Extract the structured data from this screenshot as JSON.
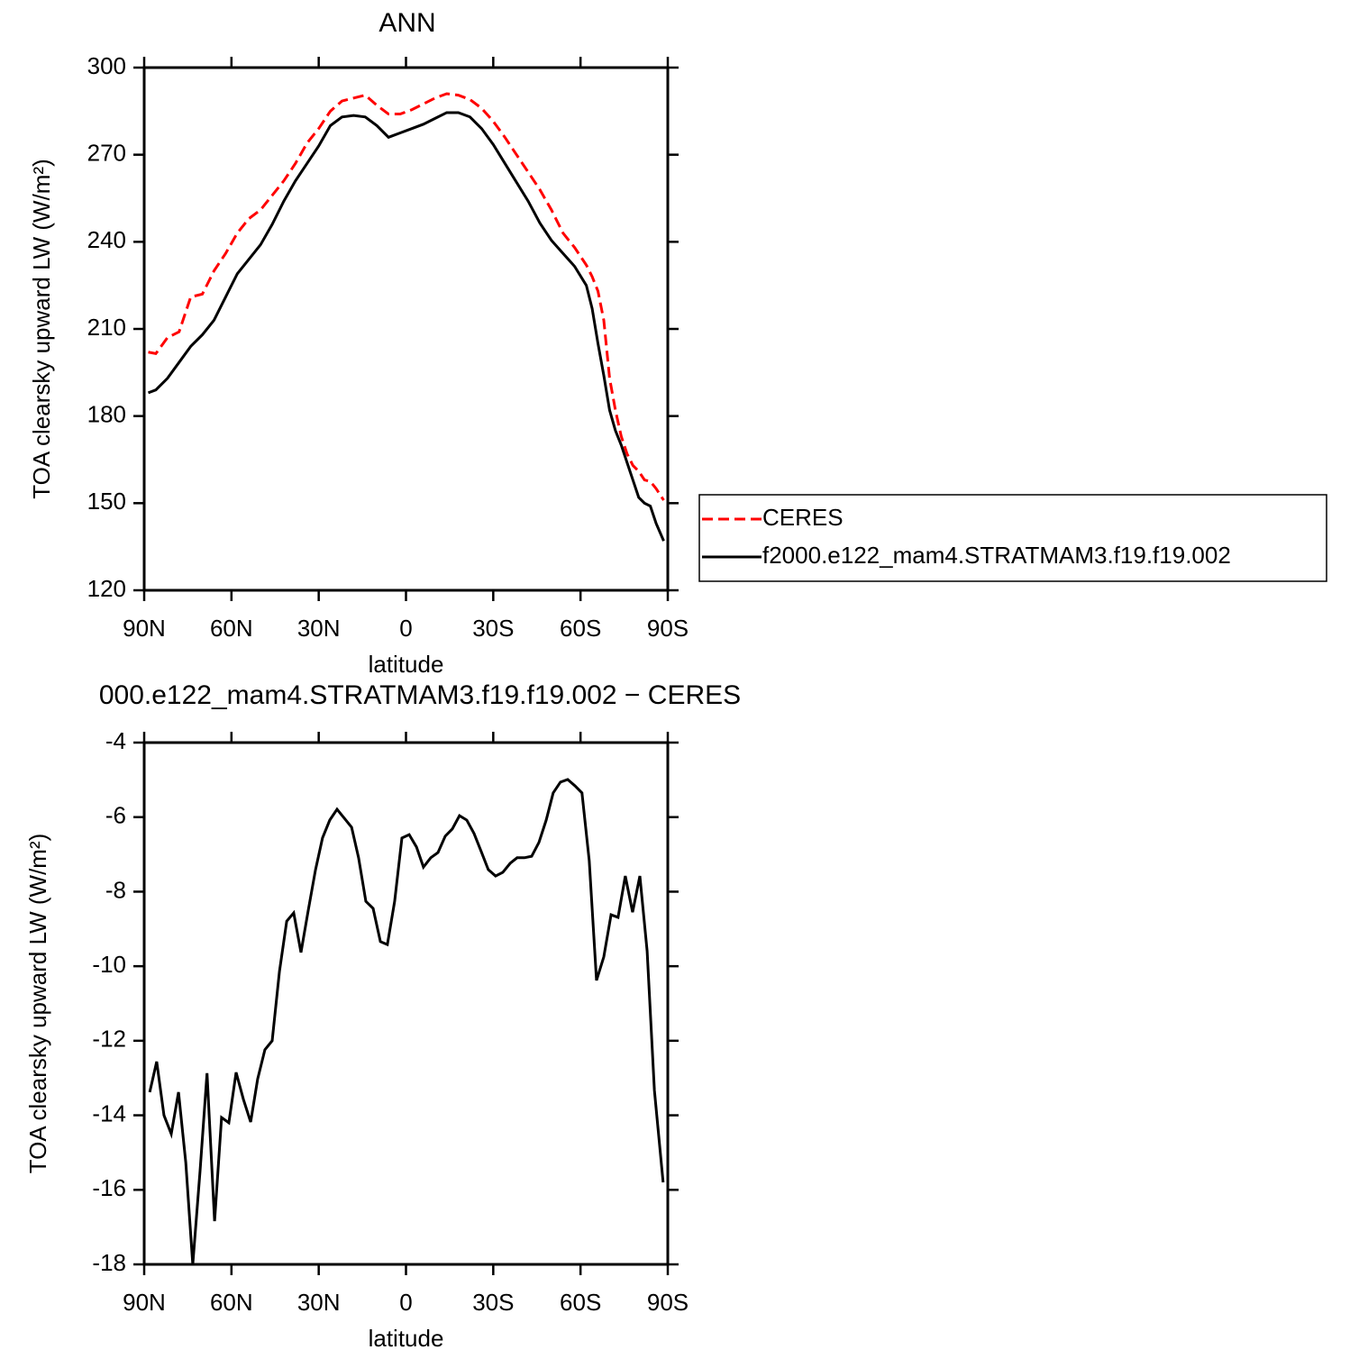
{
  "chart_data": [
    {
      "type": "line",
      "title": "ANN",
      "xlabel": "latitude",
      "ylabel": "TOA clearsky upward LW (W/m²)",
      "xlim": [
        90,
        -90
      ],
      "xticks": [
        {
          "value": 90,
          "label": "90N"
        },
        {
          "value": 60,
          "label": "60N"
        },
        {
          "value": 30,
          "label": "30N"
        },
        0,
        {
          "value": -30,
          "label": "30S"
        },
        {
          "value": -60,
          "label": "60S"
        },
        {
          "value": -90,
          "label": "90S"
        }
      ],
      "ylim": [
        120,
        300
      ],
      "yticks": [
        120,
        150,
        180,
        210,
        240,
        270,
        300
      ],
      "legend": "right",
      "x": [
        88.6,
        86,
        82,
        78,
        74,
        70,
        66,
        62,
        58,
        54,
        50,
        46,
        42,
        38,
        34,
        30,
        26,
        22,
        18,
        14,
        10,
        6,
        2,
        -2,
        -6,
        -10,
        -14,
        -18,
        -22,
        -26,
        -30,
        -34,
        -38,
        -42,
        -46,
        -50,
        -54,
        -58,
        -62,
        -64,
        -66,
        -68,
        -70,
        -72,
        -74,
        -76,
        -78,
        -80,
        -82,
        -84,
        -86,
        -88.6
      ],
      "series": [
        {
          "name": "CERES",
          "color": "#ff0000",
          "linestyle": "dashed",
          "values": [
            202,
            201.5,
            207,
            209,
            221,
            222,
            230,
            236,
            243,
            248,
            251,
            256,
            261,
            267,
            274,
            279,
            285,
            288.5,
            289.5,
            290.5,
            287,
            284,
            284,
            285.5,
            287.5,
            289.5,
            291,
            290.5,
            289,
            286,
            281.5,
            276,
            270,
            264,
            258,
            251,
            243,
            238,
            232,
            228,
            223,
            213,
            193,
            182,
            173,
            167,
            163,
            161,
            158,
            157.5,
            155,
            151
          ]
        },
        {
          "name": "f2000.e122_mam4.STRATMAM3.f19.f19.002",
          "color": "#000000",
          "linestyle": "solid",
          "values": [
            188,
            189,
            193,
            198.5,
            204,
            208,
            213,
            221,
            229,
            234,
            239,
            246,
            254,
            261,
            267,
            273,
            280,
            283,
            283.5,
            283,
            280,
            276,
            277.5,
            279,
            280.5,
            282.5,
            284.5,
            284.5,
            283,
            279,
            273.5,
            267,
            260.5,
            254,
            246.5,
            240.5,
            236,
            231.5,
            225,
            217,
            205,
            194,
            182,
            175,
            170,
            164,
            158,
            152,
            150,
            149,
            143,
            137
          ]
        }
      ]
    },
    {
      "type": "line",
      "title": "000.e122_mam4.STRATMAM3.f19.f19.002 − CERES",
      "xlabel": "latitude",
      "ylabel": "TOA clearsky upward LW (W/m²)",
      "xlim": [
        90,
        -90
      ],
      "xticks": [
        {
          "value": 90,
          "label": "90N"
        },
        {
          "value": 60,
          "label": "60N"
        },
        {
          "value": 30,
          "label": "30N"
        },
        0,
        {
          "value": -30,
          "label": "30S"
        },
        {
          "value": -60,
          "label": "60S"
        },
        {
          "value": -90,
          "label": "90S"
        }
      ],
      "ylim": [
        -18,
        -4
      ],
      "yticks": [
        -18,
        -16,
        -14,
        -12,
        -10,
        -8,
        -6,
        -4
      ],
      "color": "#000000",
      "linestyle": "solid",
      "x": [
        88.1,
        85.7,
        83.2,
        80.7,
        78.2,
        75.7,
        73.3,
        70.8,
        68.4,
        65.8,
        63.4,
        60.9,
        58.4,
        55.9,
        53.4,
        51,
        48.5,
        46,
        43.5,
        41,
        38.6,
        36.1,
        33.6,
        31.1,
        28.7,
        26.2,
        23.7,
        21.2,
        18.7,
        16.3,
        13.8,
        11.3,
        8.8,
        6.4,
        3.9,
        1.4,
        -1.1,
        -3.6,
        -6,
        -8.5,
        -11,
        -13.5,
        -15.9,
        -18.4,
        -20.9,
        -23.4,
        -25.9,
        -28.3,
        -30.8,
        -33.3,
        -35.8,
        -38.2,
        -40.7,
        -43.2,
        -45.7,
        -48.2,
        -50.6,
        -53.1,
        -55.6,
        -58.1,
        -60.5,
        -63,
        -65.5,
        -68,
        -70.5,
        -72.9,
        -75.4,
        -77.9,
        -80.4,
        -82.9,
        -85.4,
        -88.4
      ],
      "values": [
        -13.38,
        -12.56,
        -14.0,
        -14.5,
        -13.38,
        -15.27,
        -18,
        -15.5,
        -12.87,
        -16.84,
        -14.06,
        -14.2,
        -12.85,
        -13.57,
        -14.18,
        -13.03,
        -12.24,
        -12,
        -10.14,
        -8.79,
        -8.57,
        -9.63,
        -8.5,
        -7.41,
        -6.56,
        -6.08,
        -5.79,
        -6.03,
        -6.27,
        -7.09,
        -8.26,
        -8.45,
        -9.34,
        -9.42,
        -8.26,
        -6.56,
        -6.47,
        -6.8,
        -7.34,
        -7.09,
        -6.95,
        -6.51,
        -6.32,
        -5.96,
        -6.08,
        -6.44,
        -6.93,
        -7.41,
        -7.58,
        -7.48,
        -7.24,
        -7.09,
        -7.09,
        -7.05,
        -6.68,
        -6.08,
        -5.35,
        -5.06,
        -4.99,
        -5.16,
        -5.35,
        -7.17,
        -10.38,
        -9.75,
        -8.62,
        -8.69,
        -7.58,
        -8.55,
        -7.58,
        -9.59,
        -13.33,
        -15.8
      ]
    }
  ]
}
